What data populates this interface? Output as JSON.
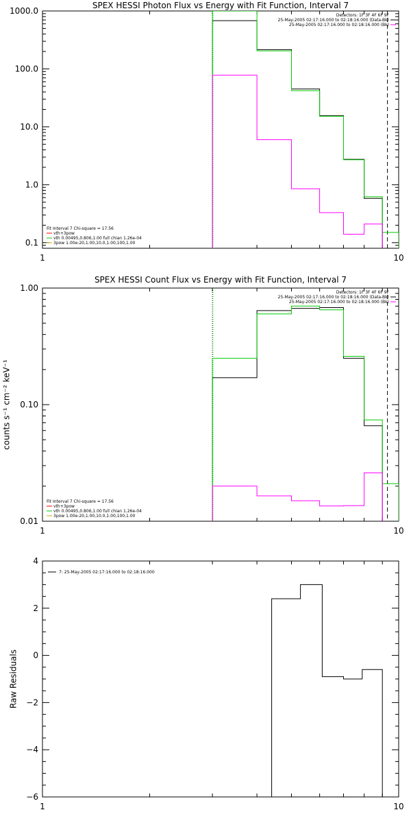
{
  "chart_data": [
    {
      "id": "photon",
      "type": "line",
      "title": "SPEX HESSI Photon Flux vs Energy with Fit Function, Interval 7",
      "xlabel": "",
      "ylabel": "",
      "xscale": "log",
      "yscale": "log",
      "xlim": [
        1,
        10
      ],
      "ylim": [
        0.08,
        1000
      ],
      "x_ticks": [
        {
          "value": 1,
          "label": "1"
        },
        {
          "value": 10,
          "label": "10"
        }
      ],
      "y_ticks": [
        {
          "value": 0.1,
          "label": "0.1"
        },
        {
          "value": 1,
          "label": "1.0"
        },
        {
          "value": 10,
          "label": "10.0"
        },
        {
          "value": 100,
          "label": "100.0"
        },
        {
          "value": 1000,
          "label": "1000.0"
        }
      ],
      "vlines": [
        {
          "x": 3,
          "style": "dotted",
          "color": "#000000"
        },
        {
          "x": 3,
          "style": "dotted",
          "color": "#00cc00"
        },
        {
          "x": 9.3,
          "style": "dashed",
          "color": "#000000"
        }
      ],
      "series": [
        {
          "color": "#000000",
          "edges": [
            3,
            4,
            5,
            6,
            7,
            8,
            9
          ],
          "values": [
            680,
            215,
            45,
            15.5,
            2.75,
            0.58
          ]
        },
        {
          "color": "#00cc00",
          "edges": [
            3,
            4,
            5,
            6,
            7,
            8,
            9,
            10
          ],
          "values": [
            1000,
            205,
            42,
            15.2,
            2.7,
            0.62,
            0.15
          ]
        },
        {
          "color": "#ff00ff",
          "edges": [
            3,
            4,
            5,
            6,
            7,
            8,
            9
          ],
          "values": [
            78,
            6,
            0.85,
            0.33,
            0.14,
            0.21
          ]
        }
      ],
      "legend_topright": [
        {
          "text": "Detectors: 1F 3F 4F 6F 9F",
          "color": ""
        },
        {
          "text": "25-May-2005 02:17:16.000 to 02:18:16.000 (Data-Bk)",
          "color": "#000000"
        },
        {
          "text": "25-May-2005 02:17:16.000 to 02:18:16.000 (Bk)",
          "color": "#ff00ff"
        }
      ],
      "legend_bottomleft": [
        {
          "text": "Fit Interval  7    Chi-square = 17.56",
          "color": ""
        },
        {
          "text": "vth+3pow",
          "color": "#ff0000"
        },
        {
          "text": "vth 0.00495,0.806,1.00   full chian 1.26e-04",
          "color": "#00cc00"
        },
        {
          "text": "3pow 1.00e-20,1.00,10.0,1.00,100,1.00",
          "color": "#ccaa00"
        }
      ]
    },
    {
      "id": "count",
      "type": "line",
      "title": "SPEX HESSI Count Flux vs Energy with Fit Function, Interval 7",
      "xlabel": "",
      "ylabel": "counts s⁻¹ cm⁻² keV⁻¹",
      "xscale": "log",
      "yscale": "log",
      "xlim": [
        1,
        10
      ],
      "ylim": [
        0.01,
        1
      ],
      "x_ticks": [
        {
          "value": 1,
          "label": "1"
        },
        {
          "value": 10,
          "label": "10"
        }
      ],
      "y_ticks": [
        {
          "value": 0.01,
          "label": "0.01"
        },
        {
          "value": 0.1,
          "label": "0.10"
        },
        {
          "value": 1,
          "label": "1.00"
        }
      ],
      "vlines": [
        {
          "x": 3,
          "style": "dotted",
          "color": "#000000"
        },
        {
          "x": 3,
          "style": "dotted",
          "color": "#00cc00"
        },
        {
          "x": 9.3,
          "style": "dashed",
          "color": "#000000"
        }
      ],
      "series": [
        {
          "color": "#000000",
          "edges": [
            3,
            4,
            5,
            6,
            7,
            8,
            9
          ],
          "values": [
            0.17,
            0.64,
            0.67,
            0.68,
            0.25,
            0.066
          ]
        },
        {
          "color": "#00cc00",
          "edges": [
            3,
            4,
            5,
            6,
            7,
            8,
            9,
            10
          ],
          "values": [
            0.25,
            0.6,
            0.7,
            0.65,
            0.26,
            0.074,
            0.021
          ]
        },
        {
          "color": "#ff00ff",
          "edges": [
            3,
            4,
            5,
            6,
            7,
            8,
            9
          ],
          "values": [
            0.02,
            0.0165,
            0.015,
            0.0135,
            0.0136,
            0.026
          ]
        }
      ],
      "legend_topright": [
        {
          "text": "Detectors: 1F 3F 4F 6F 9F",
          "color": ""
        },
        {
          "text": "25-May-2005 02:17:16.000 to 02:18:16.000 (Data-Bk)",
          "color": "#000000"
        },
        {
          "text": "25-May-2005 02:17:16.000 to 02:18:16.000 (Bk)",
          "color": "#ff00ff"
        }
      ],
      "legend_bottomleft": [
        {
          "text": "Fit Interval  7    Chi-square = 17.56",
          "color": ""
        },
        {
          "text": "vth+3pow",
          "color": "#ff0000"
        },
        {
          "text": "vth 0.00495,0.806,1.00   full chian 1.26e-04",
          "color": "#00cc00"
        },
        {
          "text": "3pow 1.00e-20,1.00,10.0,1.00,100,1.00",
          "color": "#ccaa00"
        }
      ]
    },
    {
      "id": "residuals",
      "type": "line",
      "title": "",
      "xlabel": "",
      "ylabel": "Raw Residuals",
      "xscale": "log",
      "yscale": "linear",
      "xlim": [
        1,
        10
      ],
      "ylim": [
        -6,
        4
      ],
      "x_ticks": [
        {
          "value": 1,
          "label": "1"
        },
        {
          "value": 10,
          "label": "10"
        }
      ],
      "y_ticks": [
        {
          "value": -6,
          "label": "−6"
        },
        {
          "value": -4,
          "label": "−4"
        },
        {
          "value": -2,
          "label": "−2"
        },
        {
          "value": 0,
          "label": "0"
        },
        {
          "value": 2,
          "label": "2"
        },
        {
          "value": 4,
          "label": "4"
        }
      ],
      "vlines": [],
      "series": [
        {
          "color": "#000000",
          "edges": [
            4.4,
            5.3,
            6.1,
            7.0,
            7.9,
            9.0
          ],
          "values": [
            2.4,
            3.0,
            -0.9,
            -1.0,
            -0.6
          ]
        }
      ],
      "legend_topright": [],
      "legend_topleft": [
        {
          "text": "7: 25-May-2005 02:17:16.000 to 02:18:16.000",
          "color": "#000000"
        }
      ],
      "legend_bottomleft": []
    }
  ]
}
